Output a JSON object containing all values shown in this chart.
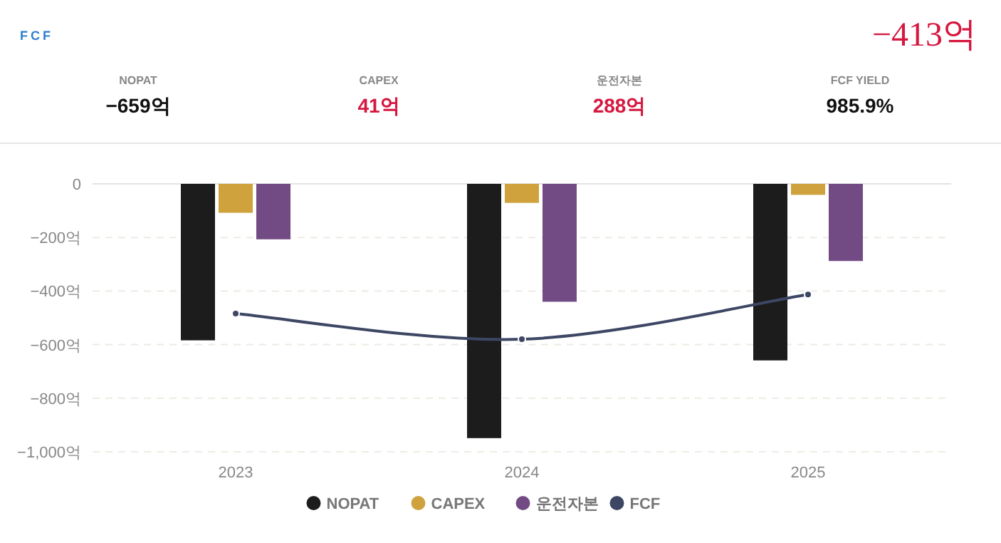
{
  "chart_data": [
    {
      "type": "other",
      "title": "FCF",
      "subtitle": "−413억",
      "categories": [
        "NOPAT",
        "CAPEX",
        "운전자본",
        "FCF YIELD"
      ],
      "value_labels": [
        "−659억",
        "41억",
        "288억",
        "985.9%"
      ],
      "colors": [
        "#111111",
        "#d6173f",
        "#d6173f",
        "#111111"
      ]
    },
    {
      "type": "bar",
      "categories": [
        "2023",
        "2024",
        "2025"
      ],
      "ylim": [
        -1000,
        0
      ],
      "yticks": [
        {
          "value": -1000,
          "label": "−1,000억"
        },
        {
          "value": -800,
          "label": "−800억"
        },
        {
          "value": -600,
          "label": "−600억"
        },
        {
          "value": -400,
          "label": "−400억"
        },
        {
          "value": -200,
          "label": "−200억"
        },
        0
      ],
      "grid": "y",
      "legend": "bottom",
      "marker": "circle",
      "series": [
        {
          "name": "NOPAT",
          "color": "#1c1c1c",
          "values": [
            -584,
            -949,
            -659
          ]
        },
        {
          "name": "CAPEX",
          "color": "#cfa23e",
          "values": [
            -108,
            -71,
            -41
          ]
        },
        {
          "name": "운전자본",
          "color": "#734b84",
          "values": [
            -207,
            -440,
            -288
          ]
        },
        {
          "name": "FCF",
          "type": "line",
          "color": "#3d4663",
          "values": [
            -484,
            -580,
            -413
          ]
        }
      ]
    }
  ]
}
